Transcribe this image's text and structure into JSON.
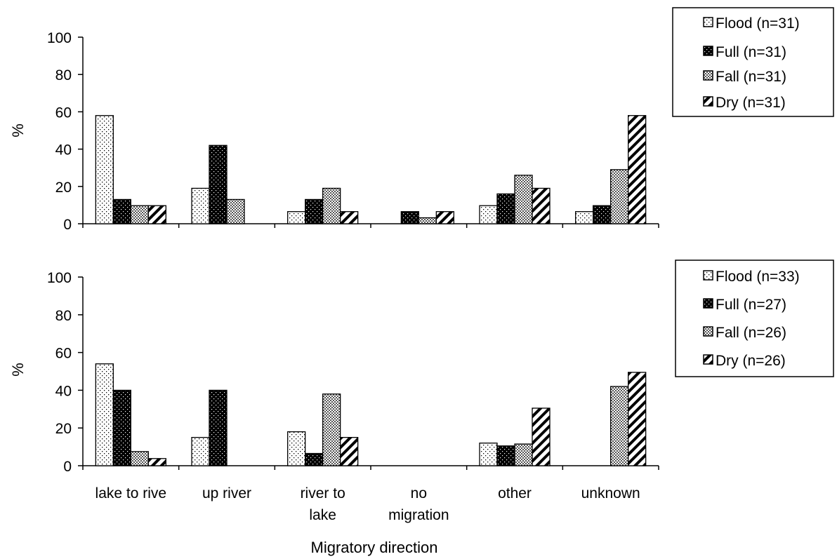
{
  "chart_data": [
    {
      "type": "bar",
      "categories": [
        "lake to rive",
        "up river",
        "river to lake",
        "no migration",
        "other",
        "unknown"
      ],
      "series": [
        {
          "name": "Flood (n=31)",
          "values": [
            58,
            19,
            6.5,
            0,
            9.7,
            6.5
          ]
        },
        {
          "name": "Full (n=31)",
          "values": [
            13,
            42,
            13,
            6.5,
            16,
            9.7
          ]
        },
        {
          "name": "Fall (n=31)",
          "values": [
            9.7,
            13,
            19,
            3.2,
            26,
            29
          ]
        },
        {
          "name": "Dry (n=31)",
          "values": [
            9.7,
            0,
            6.5,
            6.5,
            19,
            58
          ]
        }
      ],
      "ylabel": "%",
      "ylim": [
        0,
        100
      ],
      "yticks": [
        0,
        20,
        40,
        60,
        80,
        100
      ],
      "grid": false,
      "legend": "right"
    },
    {
      "type": "bar",
      "categories": [
        "lake to rive",
        "up river",
        "river to lake",
        "no migration",
        "other",
        "unknown"
      ],
      "series": [
        {
          "name": "Flood (n=33)",
          "values": [
            54,
            15,
            18,
            0,
            12,
            0
          ]
        },
        {
          "name": "Full (n=27)",
          "values": [
            40,
            40,
            6.5,
            0,
            10.5,
            0
          ]
        },
        {
          "name": "Fall (n=26)",
          "values": [
            7.5,
            0,
            38,
            0,
            11.5,
            42
          ]
        },
        {
          "name": "Dry (n=26)",
          "values": [
            3.8,
            0,
            15,
            0,
            30.5,
            49.5
          ]
        }
      ],
      "ylabel": "%",
      "xlabel": "Migratory direction",
      "ylim": [
        0,
        100
      ],
      "yticks": [
        0,
        20,
        40,
        60,
        80,
        100
      ],
      "grid": false,
      "legend": "right"
    }
  ]
}
